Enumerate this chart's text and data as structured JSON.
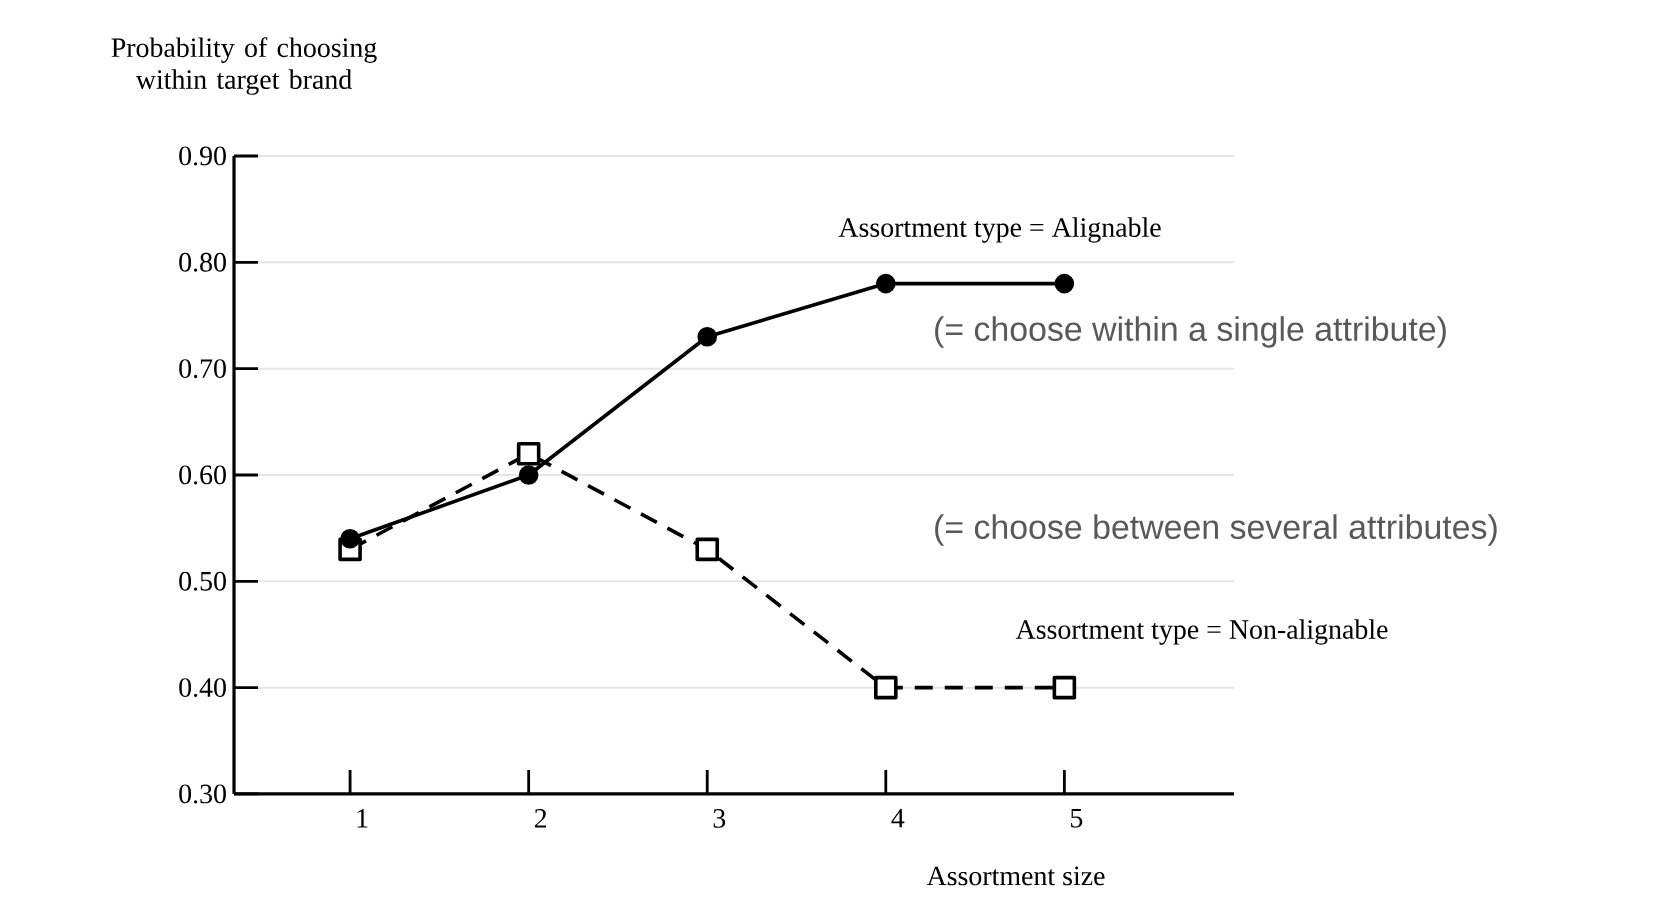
{
  "chart_data": {
    "type": "line",
    "xlabel": "Assortment size",
    "ylabel": "Probability of choosing within target brand",
    "categories": [
      "1",
      "2",
      "3",
      "4",
      "5"
    ],
    "series": [
      {
        "name": "Assortment type = Alignable",
        "color": "#000000",
        "values": [
          0.54,
          0.6,
          0.73,
          0.78,
          0.78
        ],
        "marker": "circle",
        "line_style": "solid"
      },
      {
        "name": "Assortment type = Non-alignable",
        "color": "#000000",
        "values": [
          0.53,
          0.62,
          0.53,
          0.4,
          0.4
        ],
        "marker": "square",
        "line_style": "dashed"
      }
    ],
    "ylim": [
      0.3,
      0.9
    ],
    "yticks": [
      {
        "value": 0.3,
        "label": "0.30"
      },
      {
        "value": 0.4,
        "label": "0.40"
      },
      {
        "value": 0.5,
        "label": "0.50"
      },
      {
        "value": 0.6,
        "label": "0.60"
      },
      {
        "value": 0.7,
        "label": "0.70"
      },
      {
        "value": 0.8,
        "label": "0.80"
      },
      {
        "value": 0.9,
        "label": "0.90"
      }
    ],
    "grid": "y",
    "annotations": [
      "(= choose within a single attribute)",
      "(= choose between several attributes)"
    ]
  }
}
